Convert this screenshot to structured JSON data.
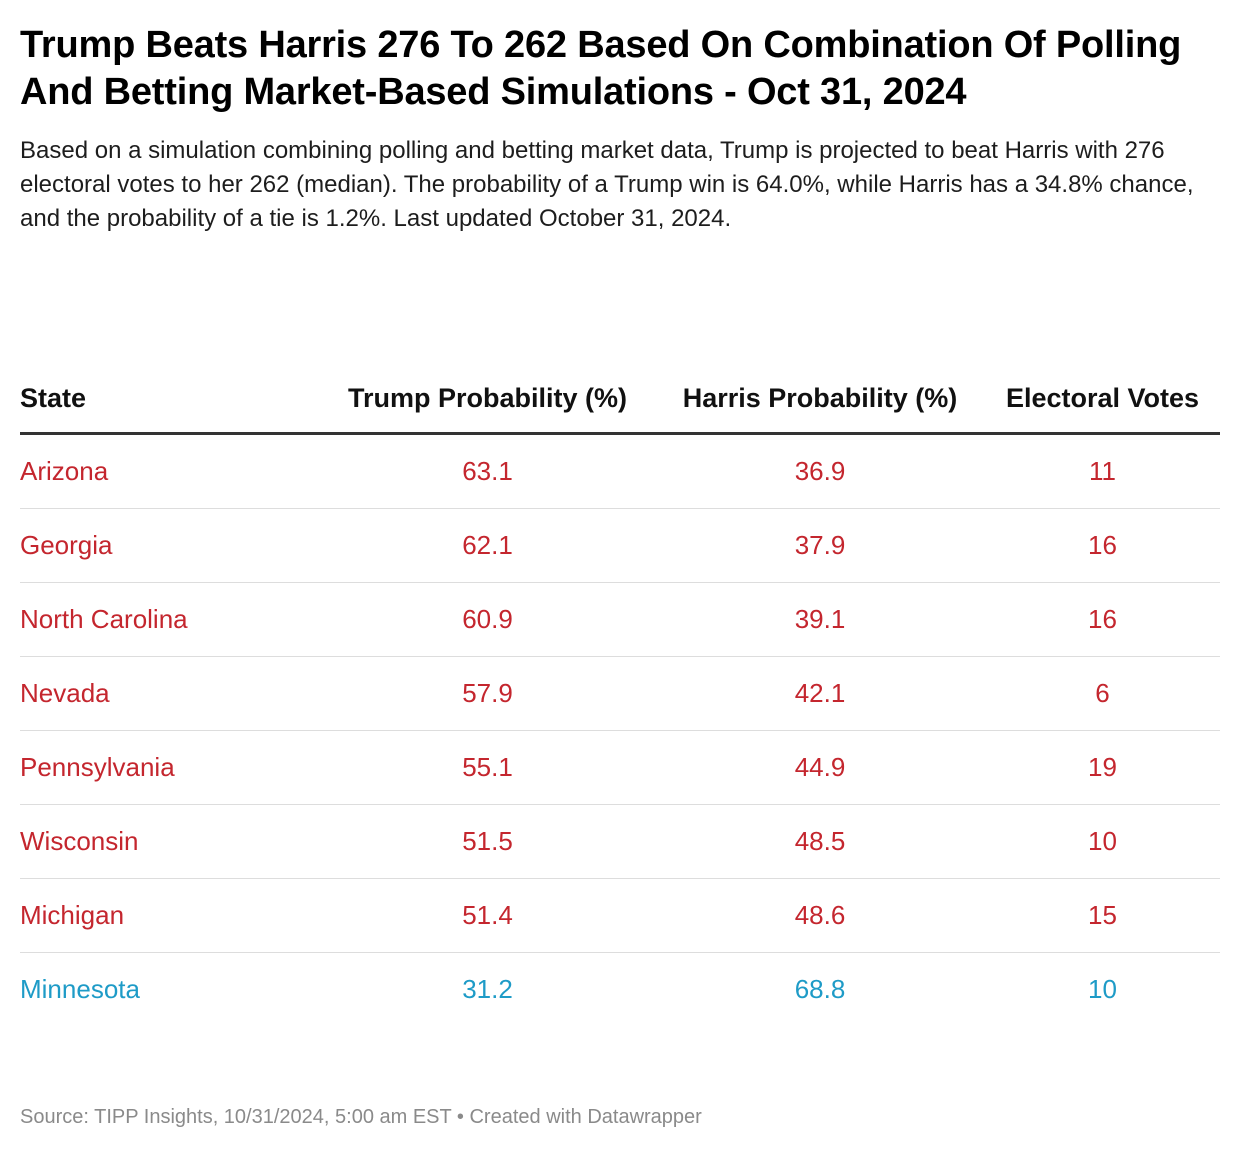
{
  "title": "Trump Beats Harris 276 To 262 Based On Combination Of Polling And Betting Market-Based Simulations - Oct 31, 2024",
  "description": "Based on a simulation combining polling and betting market data, Trump is projected to beat Harris with 276 electoral votes to her 262 (median). The probability of a Trump win is 64.0%, while Harris has a 34.8% chance, and the probability of a tie is 1.2%. Last updated October 31, 2024.",
  "colors": {
    "trump_lean": "#c4262e",
    "harris_lean": "#1e9bc7"
  },
  "chart_data": {
    "type": "table",
    "columns": [
      "State",
      "Trump Probability (%)",
      "Harris Probability (%)",
      "Electoral Votes"
    ],
    "rows": [
      {
        "state": "Arizona",
        "trump": "63.1",
        "harris": "36.9",
        "ev": "11",
        "lean": "trump_lean"
      },
      {
        "state": "Georgia",
        "trump": "62.1",
        "harris": "37.9",
        "ev": "16",
        "lean": "trump_lean"
      },
      {
        "state": "North Carolina",
        "trump": "60.9",
        "harris": "39.1",
        "ev": "16",
        "lean": "trump_lean"
      },
      {
        "state": "Nevada",
        "trump": "57.9",
        "harris": "42.1",
        "ev": "6",
        "lean": "trump_lean"
      },
      {
        "state": "Pennsylvania",
        "trump": "55.1",
        "harris": "44.9",
        "ev": "19",
        "lean": "trump_lean"
      },
      {
        "state": "Wisconsin",
        "trump": "51.5",
        "harris": "48.5",
        "ev": "10",
        "lean": "trump_lean"
      },
      {
        "state": "Michigan",
        "trump": "51.4",
        "harris": "48.6",
        "ev": "15",
        "lean": "trump_lean"
      },
      {
        "state": "Minnesota",
        "trump": "31.2",
        "harris": "68.8",
        "ev": "10",
        "lean": "harris_lean"
      }
    ]
  },
  "footer": "Source: TIPP Insights, 10/31/2024, 5:00 am EST • Created with Datawrapper"
}
